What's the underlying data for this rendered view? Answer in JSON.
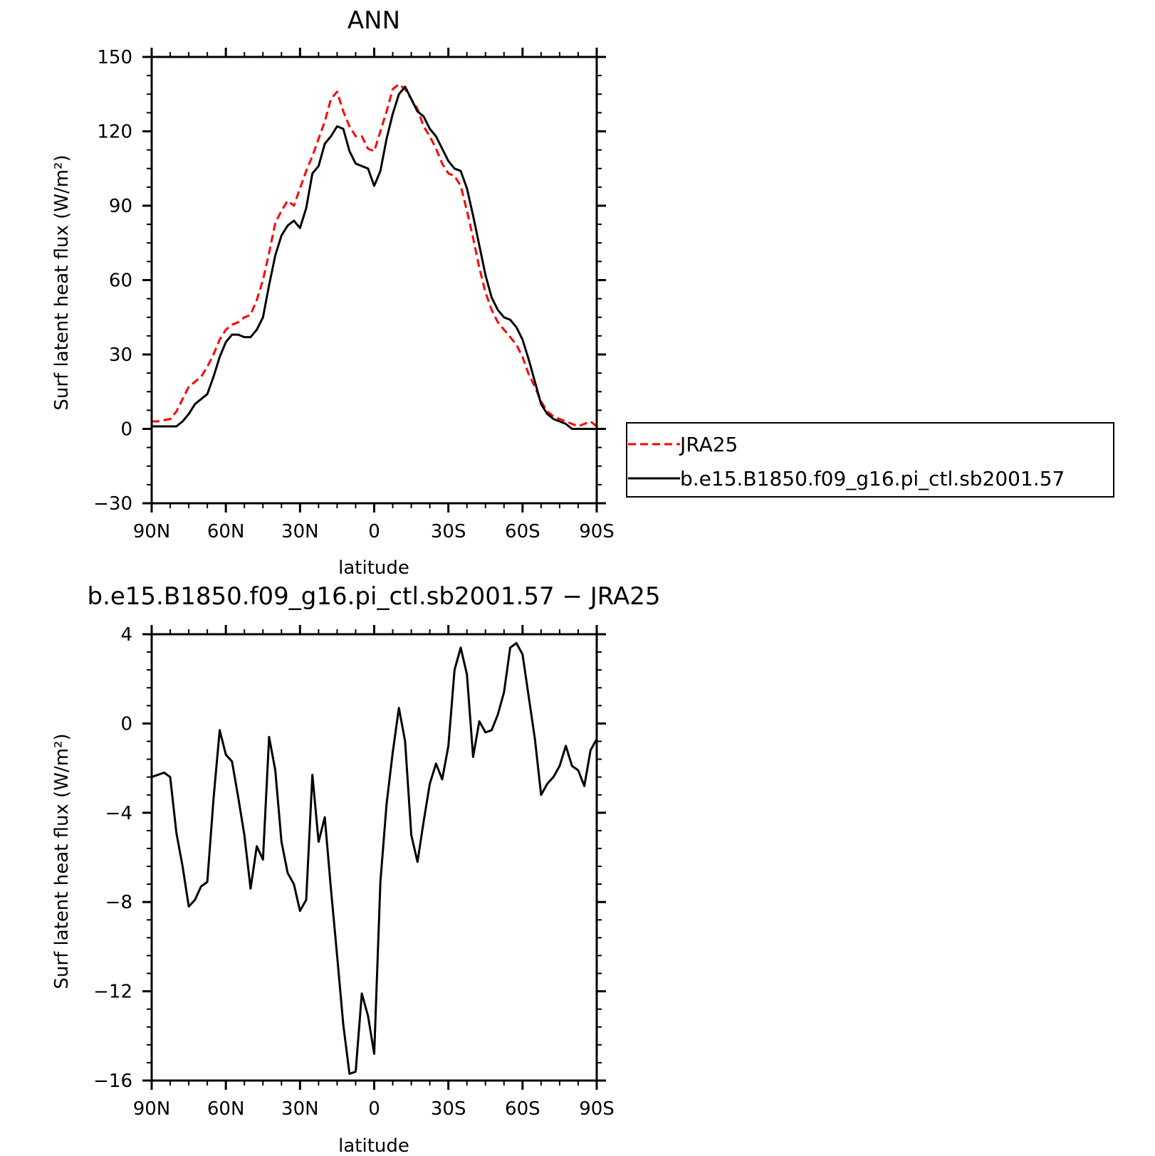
{
  "chart_data": [
    {
      "type": "line",
      "title": "ANN",
      "xlabel": "latitude",
      "ylabel": "Surf latent heat flux (W/m²)",
      "xlim": [
        90,
        -90
      ],
      "ylim": [
        -30,
        150
      ],
      "xticks": [
        {
          "value": 90,
          "label": "90N"
        },
        {
          "value": 60,
          "label": "60N"
        },
        {
          "value": 30,
          "label": "30N"
        },
        {
          "value": 0,
          "label": "0"
        },
        {
          "value": -30,
          "label": "30S"
        },
        {
          "value": -60,
          "label": "60S"
        },
        {
          "value": -90,
          "label": "90S"
        }
      ],
      "yticks": [
        {
          "value": 150,
          "label": "150"
        },
        {
          "value": 120,
          "label": "120"
        },
        {
          "value": 90,
          "label": "90"
        },
        {
          "value": 60,
          "label": "60"
        },
        {
          "value": 30,
          "label": "30"
        },
        {
          "value": 0,
          "label": "0"
        },
        {
          "value": -30,
          "label": "−30"
        }
      ],
      "legend": {
        "position": "right"
      },
      "series": [
        {
          "name": "JRA25",
          "color": "#ff0000",
          "dash": "dashed",
          "x": [
            90,
            87.5,
            82.5,
            80,
            77.5,
            75,
            72.5,
            70,
            67.5,
            65,
            62.5,
            60,
            57.5,
            55,
            52.5,
            50,
            47.5,
            45,
            42.5,
            40,
            37.5,
            35,
            32.5,
            30,
            27.5,
            25,
            22.5,
            20,
            17.5,
            15,
            12.5,
            10,
            7.5,
            5,
            2.5,
            0,
            -2.5,
            -5,
            -7.5,
            -10,
            -12.5,
            -15,
            -17.5,
            -20,
            -22.5,
            -25,
            -27.5,
            -30,
            -32.5,
            -35,
            -37.5,
            -40,
            -42.5,
            -45,
            -47.5,
            -50,
            -52.5,
            -55,
            -57.5,
            -60,
            -62.5,
            -65,
            -67.5,
            -70,
            -72.5,
            -75,
            -77.5,
            -80,
            -82.5,
            -85,
            -87.5,
            -90
          ],
          "y": [
            3,
            3,
            4,
            7,
            12,
            17,
            19,
            21,
            25,
            30,
            36,
            40,
            42,
            43,
            45,
            46,
            52,
            60,
            71,
            83,
            88,
            92,
            90,
            97,
            104,
            110,
            117,
            124,
            133,
            136,
            128,
            122,
            118,
            118,
            113,
            112,
            120,
            128,
            137,
            139,
            137,
            133,
            129,
            122,
            118,
            113,
            107,
            103,
            102,
            98,
            88,
            77,
            65,
            55,
            48,
            43,
            40,
            37,
            34,
            29,
            22,
            17,
            11,
            7,
            5,
            4,
            3,
            2,
            1,
            2,
            3,
            1
          ]
        },
        {
          "name": "b.e15.B1850.f09_g16.pi_ctl.sb2001.57",
          "color": "#000000",
          "dash": "solid",
          "x": [
            90,
            87.5,
            82.5,
            80,
            77.5,
            75,
            72.5,
            70,
            67.5,
            65,
            62.5,
            60,
            57.5,
            55,
            52.5,
            50,
            47.5,
            45,
            42.5,
            40,
            37.5,
            35,
            32.5,
            30,
            27.5,
            25,
            22.5,
            20,
            17.5,
            15,
            12.5,
            10,
            7.5,
            5,
            2.5,
            0,
            -2.5,
            -5,
            -7.5,
            -10,
            -12.5,
            -15,
            -17.5,
            -20,
            -22.5,
            -25,
            -27.5,
            -30,
            -32.5,
            -35,
            -37.5,
            -40,
            -42.5,
            -45,
            -47.5,
            -50,
            -52.5,
            -55,
            -57.5,
            -60,
            -62.5,
            -65,
            -67.5,
            -70,
            -72.5,
            -75,
            -77.5,
            -80,
            -82.5,
            -85,
            -87.5,
            -90
          ],
          "y": [
            1,
            1,
            1,
            1,
            3,
            6,
            10,
            12,
            14,
            21,
            29,
            35,
            38,
            38,
            37,
            37,
            40,
            45,
            58,
            70,
            78,
            82,
            84,
            81,
            89,
            103,
            106,
            115,
            118,
            122,
            121,
            112,
            107,
            106,
            105,
            98,
            104,
            117,
            127,
            135,
            138,
            133,
            128,
            126,
            121,
            118,
            113,
            108,
            105,
            104,
            97,
            86,
            74,
            62,
            53,
            48,
            45,
            44,
            41,
            36,
            28,
            19,
            10,
            6,
            4,
            3,
            2,
            0,
            0,
            0,
            0,
            0
          ]
        }
      ]
    },
    {
      "type": "line",
      "title": "b.e15.B1850.f09_g16.pi_ctl.sb2001.57 − JRA25",
      "xlabel": "latitude",
      "ylabel": "Surf latent heat flux (W/m²)",
      "xlim": [
        90,
        -90
      ],
      "ylim": [
        -16,
        4
      ],
      "xticks": [
        {
          "value": 90,
          "label": "90N"
        },
        {
          "value": 60,
          "label": "60N"
        },
        {
          "value": 30,
          "label": "30N"
        },
        {
          "value": 0,
          "label": "0"
        },
        {
          "value": -30,
          "label": "30S"
        },
        {
          "value": -60,
          "label": "60S"
        },
        {
          "value": -90,
          "label": "90S"
        }
      ],
      "yticks": [
        {
          "value": 4,
          "label": "4"
        },
        {
          "value": 0,
          "label": "0"
        },
        {
          "value": -4,
          "label": "−4"
        },
        {
          "value": -8,
          "label": "−8"
        },
        {
          "value": -12,
          "label": "−12"
        },
        {
          "value": -16,
          "label": "−16"
        }
      ],
      "series": [
        {
          "color": "#000000",
          "dash": "solid",
          "x": [
            90,
            87.5,
            85,
            82.5,
            80,
            77.5,
            75,
            72.5,
            70,
            67.5,
            65,
            62.5,
            60,
            57.5,
            55,
            52.5,
            50,
            47.5,
            45,
            42.5,
            40,
            37.5,
            35,
            32.5,
            30,
            27.5,
            25,
            22.5,
            20,
            17.5,
            15,
            12.5,
            10,
            7.5,
            5,
            2.5,
            0,
            -2.5,
            -5,
            -7.5,
            -10,
            -12.5,
            -15,
            -17.5,
            -20,
            -22.5,
            -25,
            -27.5,
            -30,
            -32.5,
            -35,
            -37.5,
            -40,
            -42.5,
            -45,
            -47.5,
            -50,
            -52.5,
            -55,
            -57.5,
            -60,
            -62.5,
            -65,
            -67.5,
            -70,
            -72.5,
            -75,
            -77.5,
            -80,
            -82.5,
            -85,
            -87.5,
            -90
          ],
          "y": [
            -2.4,
            -2.3,
            -2.2,
            -2.4,
            -4.9,
            -6.4,
            -8.2,
            -7.9,
            -7.3,
            -7.1,
            -3.4,
            -0.3,
            -1.4,
            -1.7,
            -3.3,
            -5.0,
            -7.4,
            -5.5,
            -6.1,
            -0.6,
            -2.1,
            -5.3,
            -6.7,
            -7.2,
            -8.4,
            -7.9,
            -2.3,
            -5.3,
            -4.2,
            -7.4,
            -10.4,
            -13.5,
            -15.7,
            -15.6,
            -12.1,
            -13.1,
            -14.8,
            -7.1,
            -3.6,
            -1.3,
            0.7,
            -0.8,
            -5.0,
            -6.2,
            -4.4,
            -2.7,
            -1.8,
            -2.5,
            -1.0,
            2.4,
            3.4,
            2.2,
            -1.5,
            0.1,
            -0.4,
            -0.3,
            0.4,
            1.4,
            3.4,
            3.6,
            3.1,
            1.2,
            -0.7,
            -3.2,
            -2.7,
            -2.4,
            -1.9,
            -1.0,
            -1.9,
            -2.1,
            -2.8,
            -1.2,
            -0.7
          ]
        }
      ]
    }
  ]
}
